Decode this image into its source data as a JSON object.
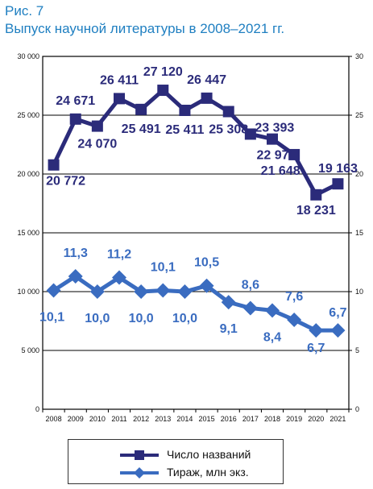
{
  "figure": {
    "label": "Рис. 7",
    "title": "Выпуск научной литературы в 2008–2021 гг."
  },
  "colors": {
    "titles_series": "#2b2b7a",
    "print_series": "#3a6cc0",
    "heading": "#1f7fc1"
  },
  "chart_data": {
    "type": "line",
    "x": [
      "2008",
      "2009",
      "2010",
      "2011",
      "2012",
      "2013",
      "2014",
      "2015",
      "2016",
      "2017",
      "2018",
      "2019",
      "2020",
      "2021"
    ],
    "series": [
      {
        "name": "Число названий",
        "axis": "left",
        "marker": "square",
        "values": [
          20772,
          24671,
          24070,
          26411,
          25491,
          27120,
          25411,
          26447,
          25308,
          23393,
          22971,
          21648,
          18231,
          19163
        ],
        "data_labels": [
          "20 772",
          "24 671",
          "24 070",
          "26 411",
          "25 491",
          "27 120",
          "25 411",
          "26 447",
          "25 308",
          "23 393",
          "22 971",
          "21 648",
          "18 231",
          "19 163"
        ]
      },
      {
        "name": "Тираж, млн экз.",
        "axis": "right",
        "marker": "diamond",
        "values": [
          10.1,
          11.3,
          10.0,
          11.2,
          10.0,
          10.1,
          10.0,
          10.5,
          9.1,
          8.6,
          8.4,
          7.6,
          6.7,
          6.7
        ],
        "data_labels": [
          "10,1",
          "11,3",
          "10,0",
          "11,2",
          "10,0",
          "10,1",
          "10,0",
          "10,5",
          "9,1",
          "8,6",
          "8,4",
          "7,6",
          "6,7",
          "6,7"
        ]
      }
    ],
    "y_left": {
      "min": 0,
      "max": 30000,
      "ticks": [
        "0",
        "5 000",
        "10 000",
        "15 000",
        "20 000",
        "25 000",
        "30 000"
      ]
    },
    "y_right": {
      "min": 0,
      "max": 30,
      "ticks": [
        "0",
        "5",
        "10",
        "15",
        "20",
        "25",
        "30"
      ]
    },
    "grid": true,
    "legend": "bottom"
  }
}
